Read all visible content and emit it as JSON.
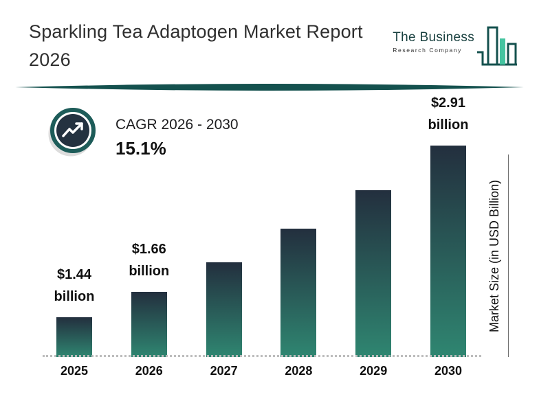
{
  "page": {
    "title_line1": "Sparkling Tea Adaptogen Market Report",
    "title_line2": "2026"
  },
  "logo": {
    "name": "The Business",
    "subname": "Research Company"
  },
  "cagr": {
    "label": "CAGR 2026 - 2030",
    "value": "15.1%"
  },
  "chart_data": {
    "type": "bar",
    "categories": [
      "2025",
      "2026",
      "2027",
      "2028",
      "2029",
      "2030"
    ],
    "values": [
      1.44,
      1.66,
      1.91,
      2.2,
      2.53,
      2.91
    ],
    "value_labels": [
      {
        "amount": "$1.44",
        "unit": "billion"
      },
      {
        "amount": "$1.66",
        "unit": "billion"
      },
      null,
      null,
      null,
      {
        "amount": "$2.91",
        "unit": "billion"
      }
    ],
    "xlabel": "",
    "ylabel": "Market Size (in USD Billion)",
    "ylim": [
      1.44,
      2.91
    ],
    "legend": false,
    "grid": "dotted-baseline-only"
  },
  "theme": {
    "accent_teal": "#14514e",
    "bar_top": "#232f3e",
    "bar_bottom": "#2f8671",
    "logo_mint": "#45c4a0",
    "dotted_line": "#bdbdbd"
  }
}
